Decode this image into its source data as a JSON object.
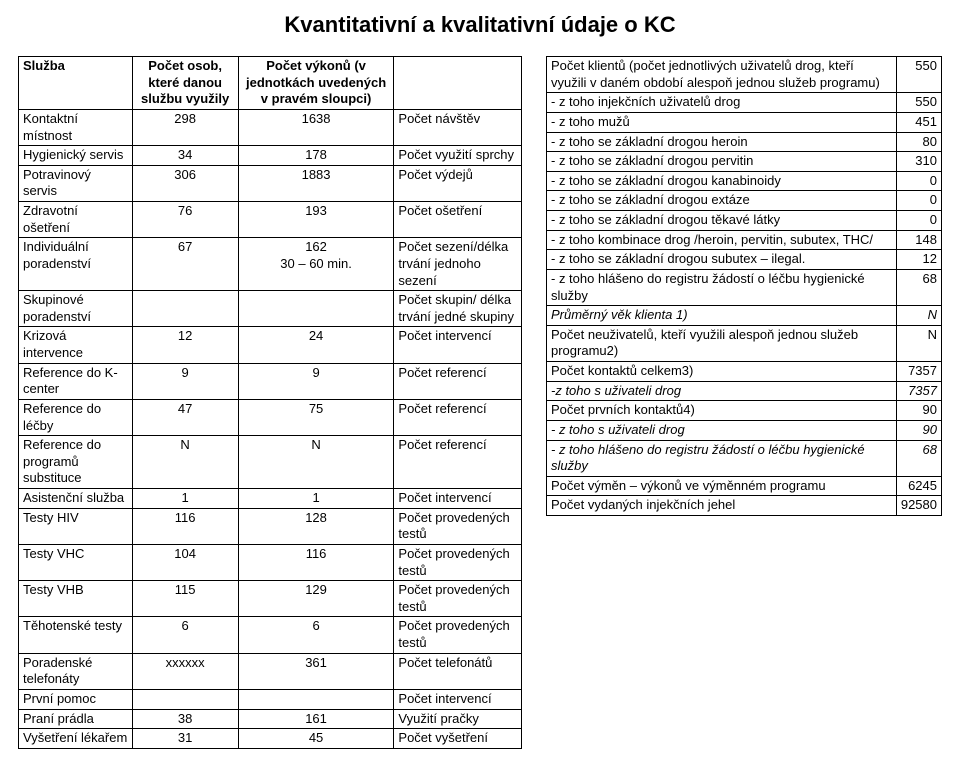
{
  "title": "Kvantitativní a kvalitativní údaje o KC",
  "leftHeader": {
    "c1": "Služba",
    "c2": "Počet osob, které danou službu využily",
    "c3": "Počet výkonů (v jednotkách uvedených v pravém sloupci)",
    "c4": ""
  },
  "left": [
    {
      "c1": "Kontaktní místnost",
      "c2": "298",
      "c3": "1638",
      "c4": "Počet návštěv"
    },
    {
      "c1": "Hygienický servis",
      "c2": "34",
      "c3": "178",
      "c4": "Počet využití sprchy"
    },
    {
      "c1": "Potravinový servis",
      "c2": "306",
      "c3": "1883",
      "c4": "Počet výdejů"
    },
    {
      "c1": "Zdravotní ošetření",
      "c2": "76",
      "c3": "193",
      "c4": "Počet ošetření"
    },
    {
      "c1": "Individuální poradenství",
      "c2": "67",
      "c3": "162\n30 – 60 min.",
      "c4": "Počet sezení/délka trvání jednoho sezení"
    },
    {
      "c1": "Skupinové poradenství",
      "c2": "",
      "c3": "",
      "c4": "Počet skupin/ délka trvání jedné skupiny"
    },
    {
      "c1": "Krizová intervence",
      "c2": "12",
      "c3": "24",
      "c4": "Počet intervencí"
    },
    {
      "c1": "Reference do K-center",
      "c2": "9",
      "c3": "9",
      "c4": "Počet referencí"
    },
    {
      "c1": "Reference do léčby",
      "c2": "47",
      "c3": "75",
      "c4": "Počet referencí"
    },
    {
      "c1": "Reference do programů substituce",
      "c2": "N",
      "c3": "N",
      "c4": "Počet referencí"
    },
    {
      "c1": "Asistenční služba",
      "c2": "1",
      "c3": "1",
      "c4": "Počet intervencí"
    },
    {
      "c1": "Testy HIV",
      "c2": "116",
      "c3": "128",
      "c4": "Počet provedených testů"
    },
    {
      "c1": "Testy VHC",
      "c2": "104",
      "c3": "116",
      "c4": "Počet provedených testů"
    },
    {
      "c1": "Testy VHB",
      "c2": "115",
      "c3": "129",
      "c4": "Počet provedených testů"
    },
    {
      "c1": "Těhotenské testy",
      "c2": "6",
      "c3": "6",
      "c4": "Počet provedených testů"
    },
    {
      "c1": "Poradenské telefonáty",
      "c2": "xxxxxx",
      "c3": "361",
      "c4": "Počet telefonátů"
    },
    {
      "c1": "První pomoc",
      "c2": "",
      "c3": "",
      "c4": "Počet intervencí"
    },
    {
      "c1": "Praní prádla",
      "c2": "38",
      "c3": "161",
      "c4": "Využití pračky"
    },
    {
      "c1": "Vyšetření lékařem",
      "c2": "31",
      "c3": "45",
      "c4": "Počet vyšetření"
    }
  ],
  "right": [
    {
      "label": "Počet klientů (počet jednotlivých uživatelů drog, kteří využili v daném období alespoň jednou služeb programu)",
      "val": "550"
    },
    {
      "label": "- z toho injekčních uživatelů drog",
      "val": "550"
    },
    {
      "label": "- z toho mužů",
      "val": "451"
    },
    {
      "label": "- z toho se základní drogou heroin",
      "val": "80"
    },
    {
      "label": "- z toho se základní drogou pervitin",
      "val": "310"
    },
    {
      "label": "- z toho se základní drogou kanabinoidy",
      "val": "0"
    },
    {
      "label": "- z toho se základní drogou extáze",
      "val": "0"
    },
    {
      "label": "- z toho se základní drogou těkavé látky",
      "val": "0"
    },
    {
      "label": "- z toho kombinace drog /heroin, pervitin, subutex, THC/",
      "val": "148"
    },
    {
      "label": "- z toho se základní drogou subutex – ilegal.",
      "val": "12"
    },
    {
      "label": "- z toho hlášeno do registru žádostí o léčbu hygienické služby",
      "val": "68"
    },
    {
      "label": "Průměrný věk klienta 1)",
      "val": "N",
      "ital": true
    },
    {
      "label": "Počet neuživatelů, kteří využili alespoň jednou služeb programu2)",
      "val": "N"
    },
    {
      "label": "Počet kontaktů celkem3)",
      "val": "7357"
    },
    {
      "label": "-z toho s uživateli drog",
      "val": "7357",
      "ital": true
    },
    {
      "label": "Počet prvních kontaktů4)",
      "val": "90"
    },
    {
      "label": "- z toho s uživateli drog",
      "val": "90",
      "ital": true
    },
    {
      "label": "- z toho hlášeno do registru žádostí o léčbu hygienické služby",
      "val": "68",
      "ital": true
    },
    {
      "label": "Počet výměn – výkonů ve výměnném programu",
      "val": "6245"
    },
    {
      "label": "Počet vydaných injekčních jehel",
      "val": "92580"
    }
  ]
}
